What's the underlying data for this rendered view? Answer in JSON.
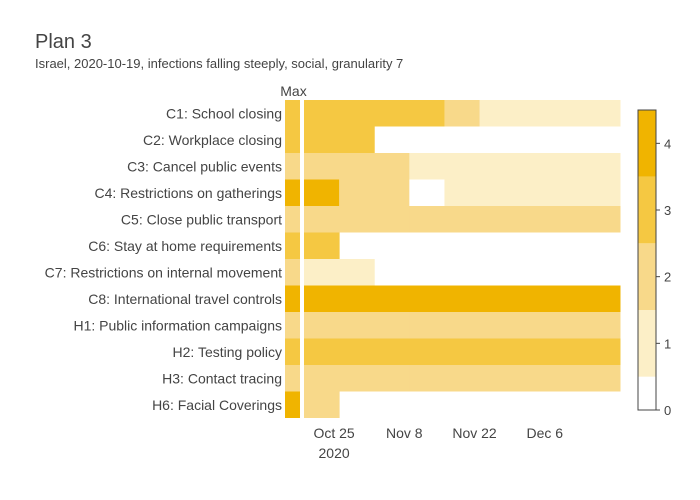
{
  "chart_data": {
    "type": "heatmap",
    "title": "Plan 3",
    "subtitle": "Israel, 2020-10-19, infections falling steeply, social, granularity 7",
    "max_label": "Max",
    "rows": [
      "C1: School closing",
      "C2: Workplace closing",
      "C3: Cancel public events",
      "C4: Restrictions on gatherings",
      "C5: Close public transport",
      "C6: Stay at home requirements",
      "C7: Restrictions on internal movement",
      "C8: International travel controls",
      "H1: Public information campaigns",
      "H2: Testing policy",
      "H3: Contact tracing",
      "H6: Facial Coverings"
    ],
    "max_values": [
      3,
      3,
      2,
      4,
      2,
      3,
      2,
      4,
      2,
      3,
      2,
      4
    ],
    "week_starts": [
      "2020-10-19",
      "2020-10-26",
      "2020-11-02",
      "2020-11-09",
      "2020-11-16",
      "2020-11-23",
      "2020-11-30",
      "2020-12-07",
      "2020-12-14"
    ],
    "values": [
      [
        3,
        3,
        3,
        3,
        2,
        1,
        1,
        1,
        1
      ],
      [
        3,
        3,
        null,
        null,
        null,
        null,
        null,
        null,
        null
      ],
      [
        2,
        2,
        2,
        1,
        1,
        1,
        1,
        1,
        1
      ],
      [
        4,
        2,
        2,
        0,
        1,
        1,
        1,
        1,
        1
      ],
      [
        2,
        2,
        2,
        2,
        2,
        2,
        2,
        2,
        2
      ],
      [
        3,
        null,
        null,
        null,
        null,
        null,
        null,
        null,
        null
      ],
      [
        1,
        1,
        null,
        null,
        null,
        null,
        null,
        null,
        null
      ],
      [
        4,
        4,
        4,
        4,
        4,
        4,
        4,
        4,
        4
      ],
      [
        2,
        2,
        2,
        2,
        2,
        2,
        2,
        2,
        2
      ],
      [
        3,
        3,
        3,
        3,
        3,
        3,
        3,
        3,
        3
      ],
      [
        2,
        2,
        2,
        2,
        2,
        2,
        2,
        2,
        2
      ],
      [
        2,
        null,
        null,
        null,
        null,
        null,
        null,
        null,
        null
      ]
    ],
    "x_ticks": [
      {
        "date": "2020-10-25",
        "label": "Oct 25",
        "sublabel": "2020"
      },
      {
        "date": "2020-11-08",
        "label": "Nov 8",
        "sublabel": ""
      },
      {
        "date": "2020-11-22",
        "label": "Nov 22",
        "sublabel": ""
      },
      {
        "date": "2020-12-06",
        "label": "Dec 6",
        "sublabel": ""
      }
    ],
    "colorscale": {
      "min": 0,
      "max": 4.5,
      "ticks": [
        "0",
        "1",
        "2",
        "3",
        "4"
      ],
      "colors": [
        "#ffffff",
        "#fcefc7",
        "#f8d98a",
        "#f5c842",
        "#f0b400"
      ]
    }
  }
}
